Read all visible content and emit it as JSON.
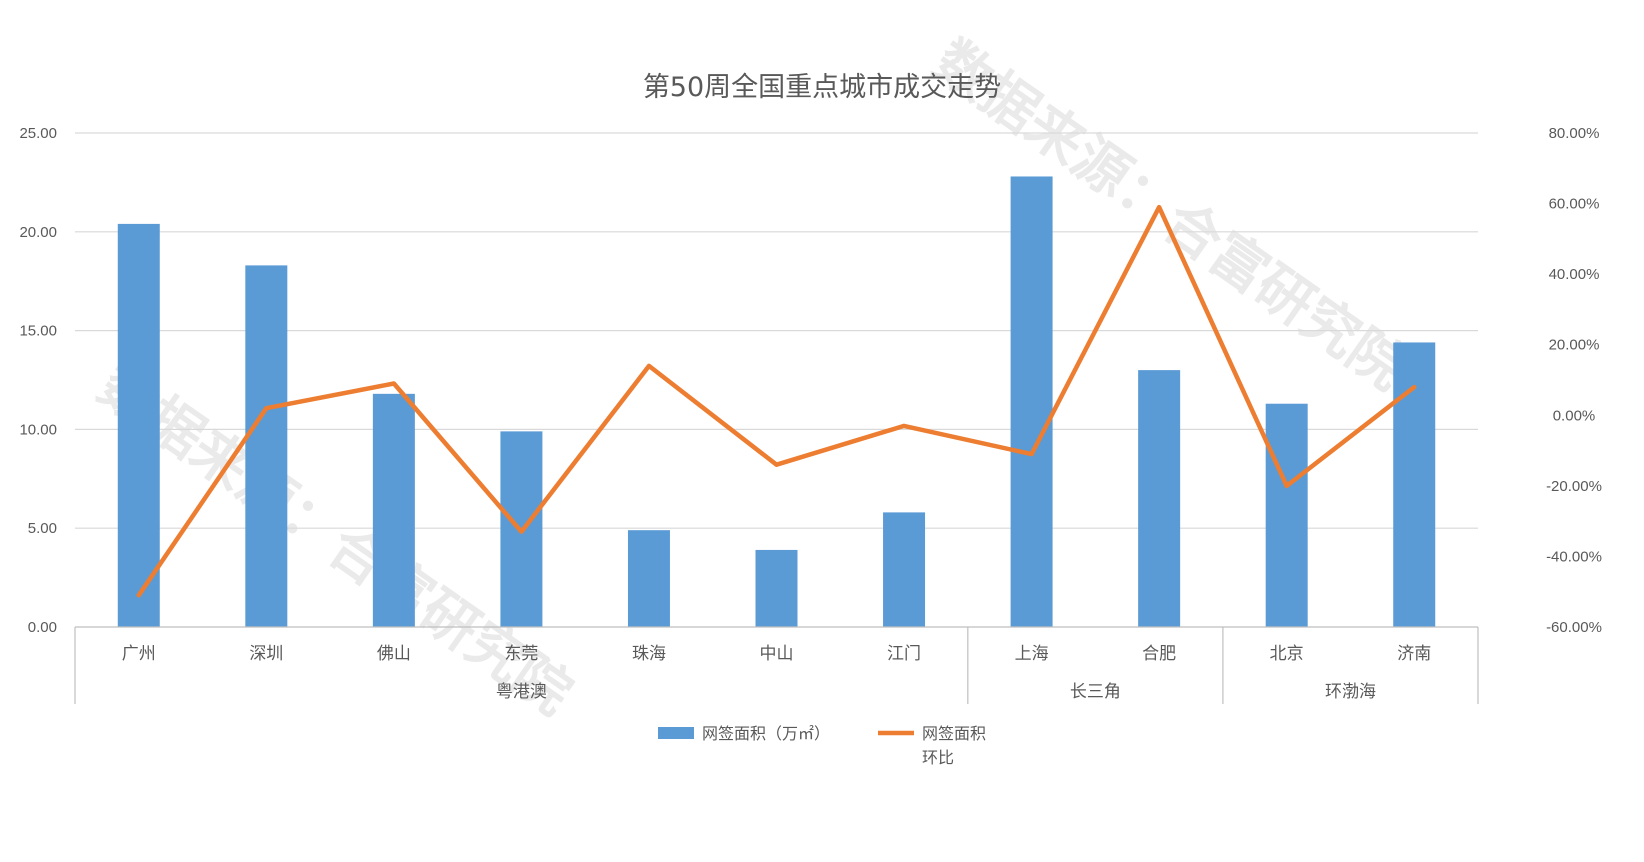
{
  "chart_data": {
    "type": "bar",
    "title": "第50周全国重点城市成交走势",
    "categories": [
      "广州",
      "深圳",
      "佛山",
      "东莞",
      "珠海",
      "中山",
      "江门",
      "上海",
      "合肥",
      "北京",
      "济南"
    ],
    "groups": [
      {
        "name": "粤港澳",
        "start": 0,
        "end": 6
      },
      {
        "name": "长三角",
        "start": 7,
        "end": 8
      },
      {
        "name": "环渤海",
        "start": 9,
        "end": 10
      }
    ],
    "series": [
      {
        "name": "网签面积（万㎡）",
        "type": "bar",
        "axis": "left",
        "color": "#5b9bd5",
        "values": [
          20.4,
          18.3,
          11.8,
          9.9,
          4.9,
          3.9,
          5.8,
          22.8,
          13.0,
          11.3,
          14.4
        ]
      },
      {
        "name": "网签面积环比",
        "type": "line",
        "axis": "right",
        "color": "#ed7d31",
        "values": [
          -51.0,
          2.0,
          9.0,
          -33.0,
          14.0,
          -14.0,
          -3.0,
          -11.0,
          59.0,
          -20.0,
          8.0
        ]
      }
    ],
    "y_left": {
      "min": 0,
      "max": 25,
      "ticks": [
        "0.00",
        "5.00",
        "10.00",
        "15.00",
        "20.00",
        "25.00"
      ]
    },
    "y_right": {
      "min": -60,
      "max": 80,
      "ticks": [
        "-60.00%",
        "-40.00%",
        "-20.00%",
        "0.00%",
        "20.00%",
        "40.00%",
        "60.00%",
        "80.00%"
      ]
    },
    "legend_position": "bottom",
    "legend": [
      {
        "label": "网签面积（万㎡）",
        "icon": "bar-swatch"
      },
      {
        "label_lines": [
          "网签面积",
          "环比"
        ],
        "icon": "line-swatch"
      }
    ],
    "grid": true,
    "watermarks": [
      "数据来源：合富研究院",
      "数据来源：合富研究院"
    ]
  }
}
